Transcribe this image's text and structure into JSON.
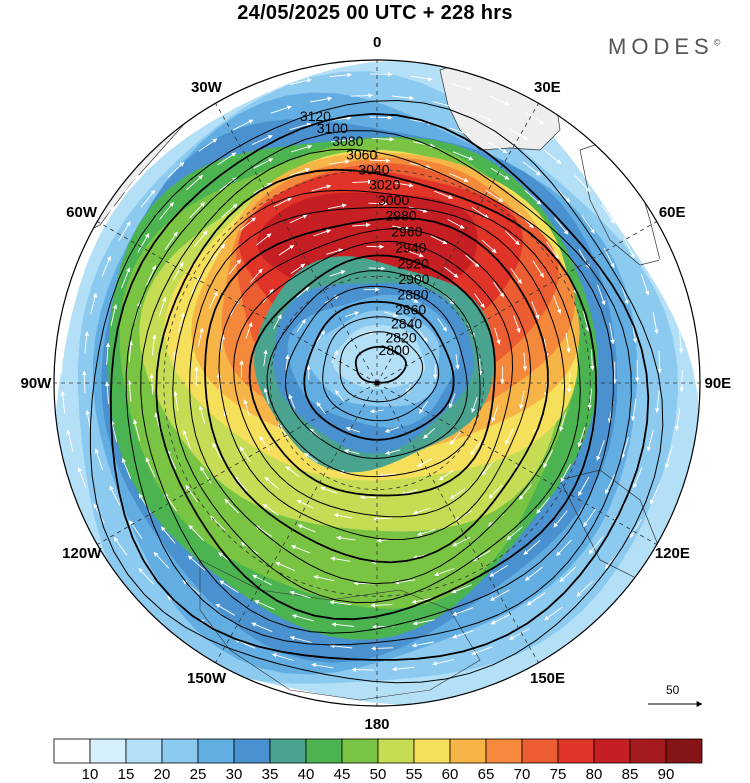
{
  "title": "24/05/2025  00 UTC  + 228 hrs",
  "brand": "MODES",
  "brand_mark": "©",
  "longitude_labels": [
    {
      "text": "0",
      "lon": 0
    },
    {
      "text": "30E",
      "lon": 30
    },
    {
      "text": "60E",
      "lon": 60
    },
    {
      "text": "90E",
      "lon": 90
    },
    {
      "text": "120E",
      "lon": 120
    },
    {
      "text": "150E",
      "lon": 150
    },
    {
      "text": "180",
      "lon": 180
    },
    {
      "text": "150W",
      "lon": -150
    },
    {
      "text": "120W",
      "lon": -120
    },
    {
      "text": "90W",
      "lon": -90
    },
    {
      "text": "60W",
      "lon": -60
    },
    {
      "text": "30W",
      "lon": -30
    }
  ],
  "contour_labels": [
    "3120",
    "3100",
    "3080",
    "3060",
    "3040",
    "3020",
    "3000",
    "2980",
    "2960",
    "2940",
    "2920",
    "2900",
    "2880",
    "2860",
    "2840",
    "2820",
    "2800"
  ],
  "reference_vector": "50",
  "colorbar": {
    "labels": [
      "10",
      "15",
      "20",
      "25",
      "30",
      "35",
      "40",
      "45",
      "50",
      "55",
      "60",
      "65",
      "70",
      "75",
      "80",
      "85",
      "90"
    ],
    "colors": [
      "#ffffff",
      "#d6effc",
      "#b3e0f7",
      "#8ccaf0",
      "#62aee3",
      "#4a91cf",
      "#49a38e",
      "#4bb34f",
      "#7ac443",
      "#c7dc55",
      "#f6e05b",
      "#f7b548",
      "#f4893c",
      "#ec5d31",
      "#df3427",
      "#c51f23",
      "#a51a1e",
      "#861416"
    ]
  },
  "colors": {
    "land_fill": "#eeeeee",
    "contour": "#000000",
    "vector": "#ffffff",
    "grid": "#333333"
  }
}
